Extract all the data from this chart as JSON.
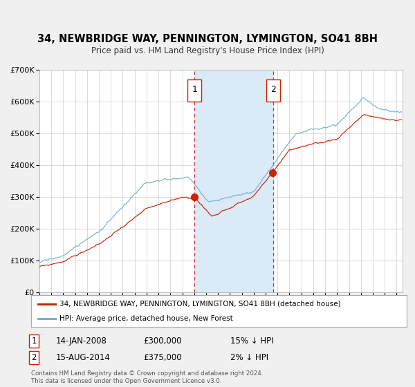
{
  "title": "34, NEWBRIDGE WAY, PENNINGTON, LYMINGTON, SO41 8BH",
  "subtitle": "Price paid vs. HM Land Registry's House Price Index (HPI)",
  "ylabel_ticks": [
    "£0",
    "£100K",
    "£200K",
    "£300K",
    "£400K",
    "£500K",
    "£600K",
    "£700K"
  ],
  "ylim": [
    0,
    700000
  ],
  "xlim_start": 1995.0,
  "xlim_end": 2025.5,
  "purchase1_date": 2008.04,
  "purchase1_price": 300000,
  "purchase2_date": 2014.62,
  "purchase2_price": 375000,
  "hpi_line_color": "#7bafd4",
  "price_line_color": "#cc2200",
  "shade_color": "#daeaf6",
  "dashed_color": "#cc3333",
  "legend_label1": "34, NEWBRIDGE WAY, PENNINGTON, LYMINGTON, SO41 8BH (detached house)",
  "legend_label2": "HPI: Average price, detached house, New Forest",
  "annotation1_label": "14-JAN-2008",
  "annotation1_price": "£300,000",
  "annotation1_hpi": "15% ↓ HPI",
  "annotation2_label": "15-AUG-2014",
  "annotation2_price": "£375,000",
  "annotation2_hpi": "2% ↓ HPI",
  "footnote": "Contains HM Land Registry data © Crown copyright and database right 2024.\nThis data is licensed under the Open Government Licence v3.0.",
  "background_color": "#f0f0f0",
  "plot_bg_color": "#ffffff"
}
